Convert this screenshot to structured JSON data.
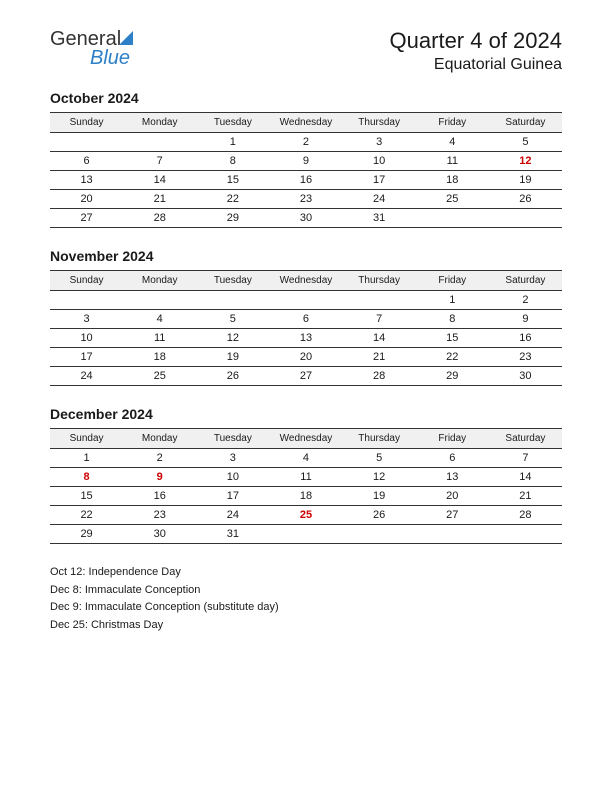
{
  "logo": {
    "general": "General",
    "blue": "Blue"
  },
  "header": {
    "title": "Quarter 4 of 2024",
    "country": "Equatorial Guinea"
  },
  "day_headers": [
    "Sunday",
    "Monday",
    "Tuesday",
    "Wednesday",
    "Thursday",
    "Friday",
    "Saturday"
  ],
  "months": [
    {
      "title": "October 2024",
      "rows": [
        [
          {
            "v": ""
          },
          {
            "v": ""
          },
          {
            "v": "1"
          },
          {
            "v": "2"
          },
          {
            "v": "3"
          },
          {
            "v": "4"
          },
          {
            "v": "5"
          }
        ],
        [
          {
            "v": "6"
          },
          {
            "v": "7"
          },
          {
            "v": "8"
          },
          {
            "v": "9"
          },
          {
            "v": "10"
          },
          {
            "v": "11"
          },
          {
            "v": "12",
            "h": true
          }
        ],
        [
          {
            "v": "13"
          },
          {
            "v": "14"
          },
          {
            "v": "15"
          },
          {
            "v": "16"
          },
          {
            "v": "17"
          },
          {
            "v": "18"
          },
          {
            "v": "19"
          }
        ],
        [
          {
            "v": "20"
          },
          {
            "v": "21"
          },
          {
            "v": "22"
          },
          {
            "v": "23"
          },
          {
            "v": "24"
          },
          {
            "v": "25"
          },
          {
            "v": "26"
          }
        ],
        [
          {
            "v": "27"
          },
          {
            "v": "28"
          },
          {
            "v": "29"
          },
          {
            "v": "30"
          },
          {
            "v": "31"
          },
          {
            "v": ""
          },
          {
            "v": ""
          }
        ]
      ]
    },
    {
      "title": "November 2024",
      "rows": [
        [
          {
            "v": ""
          },
          {
            "v": ""
          },
          {
            "v": ""
          },
          {
            "v": ""
          },
          {
            "v": ""
          },
          {
            "v": "1"
          },
          {
            "v": "2"
          }
        ],
        [
          {
            "v": "3"
          },
          {
            "v": "4"
          },
          {
            "v": "5"
          },
          {
            "v": "6"
          },
          {
            "v": "7"
          },
          {
            "v": "8"
          },
          {
            "v": "9"
          }
        ],
        [
          {
            "v": "10"
          },
          {
            "v": "11"
          },
          {
            "v": "12"
          },
          {
            "v": "13"
          },
          {
            "v": "14"
          },
          {
            "v": "15"
          },
          {
            "v": "16"
          }
        ],
        [
          {
            "v": "17"
          },
          {
            "v": "18"
          },
          {
            "v": "19"
          },
          {
            "v": "20"
          },
          {
            "v": "21"
          },
          {
            "v": "22"
          },
          {
            "v": "23"
          }
        ],
        [
          {
            "v": "24"
          },
          {
            "v": "25"
          },
          {
            "v": "26"
          },
          {
            "v": "27"
          },
          {
            "v": "28"
          },
          {
            "v": "29"
          },
          {
            "v": "30"
          }
        ]
      ]
    },
    {
      "title": "December 2024",
      "rows": [
        [
          {
            "v": "1"
          },
          {
            "v": "2"
          },
          {
            "v": "3"
          },
          {
            "v": "4"
          },
          {
            "v": "5"
          },
          {
            "v": "6"
          },
          {
            "v": "7"
          }
        ],
        [
          {
            "v": "8",
            "h": true
          },
          {
            "v": "9",
            "h": true
          },
          {
            "v": "10"
          },
          {
            "v": "11"
          },
          {
            "v": "12"
          },
          {
            "v": "13"
          },
          {
            "v": "14"
          }
        ],
        [
          {
            "v": "15"
          },
          {
            "v": "16"
          },
          {
            "v": "17"
          },
          {
            "v": "18"
          },
          {
            "v": "19"
          },
          {
            "v": "20"
          },
          {
            "v": "21"
          }
        ],
        [
          {
            "v": "22"
          },
          {
            "v": "23"
          },
          {
            "v": "24"
          },
          {
            "v": "25",
            "h": true
          },
          {
            "v": "26"
          },
          {
            "v": "27"
          },
          {
            "v": "28"
          }
        ],
        [
          {
            "v": "29"
          },
          {
            "v": "30"
          },
          {
            "v": "31"
          },
          {
            "v": ""
          },
          {
            "v": ""
          },
          {
            "v": ""
          },
          {
            "v": ""
          }
        ]
      ]
    }
  ],
  "holidays": [
    "Oct 12: Independence Day",
    "Dec 8: Immaculate Conception",
    "Dec 9: Immaculate Conception (substitute day)",
    "Dec 25: Christmas Day"
  ],
  "colors": {
    "holiday": "#cc0000",
    "logo_blue": "#2d7fc8",
    "text": "#1a1a1a",
    "header_bg": "#f0f0f0",
    "border": "#333333"
  }
}
